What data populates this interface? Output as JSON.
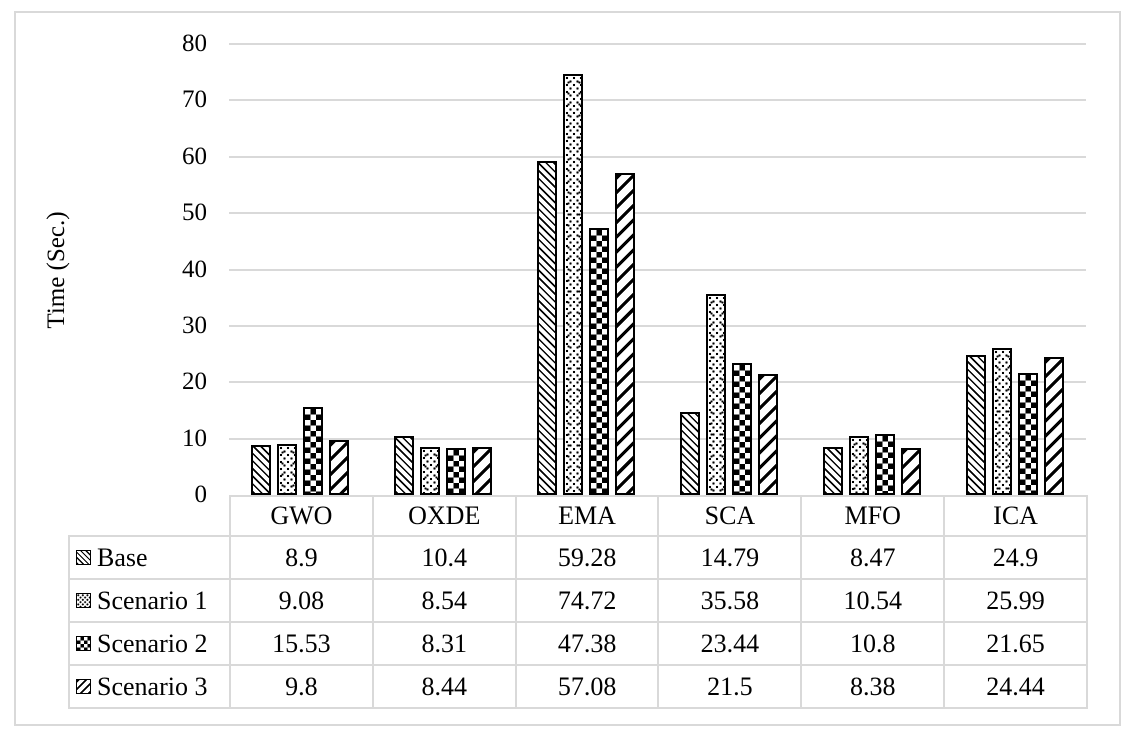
{
  "figure": {
    "background": "#ffffff",
    "frame_border_color": "#d9d9d9"
  },
  "chart_data": {
    "type": "bar",
    "title": "",
    "ylabel": "Time (Sec.)",
    "xlabel": "",
    "ylim": [
      0,
      80
    ],
    "ytick_step": 10,
    "ytick_labels": [
      "0",
      "10",
      "20",
      "30",
      "40",
      "50",
      "60",
      "70",
      "80"
    ],
    "grid": true,
    "legend_position": "data-table-left",
    "categories": [
      "GWO",
      "OXDE",
      "EMA",
      "SCA",
      "MFO",
      "ICA"
    ],
    "series": [
      {
        "name": "Base",
        "pattern": "diagonal-down-thin",
        "values": [
          8.9,
          10.4,
          59.28,
          14.79,
          8.47,
          24.9
        ]
      },
      {
        "name": "Scenario 1",
        "pattern": "dots",
        "values": [
          9.08,
          8.54,
          74.72,
          35.58,
          10.54,
          25.99
        ]
      },
      {
        "name": "Scenario 2",
        "pattern": "checkerboard",
        "values": [
          15.53,
          8.31,
          47.38,
          23.44,
          10.8,
          21.65
        ]
      },
      {
        "name": "Scenario 3",
        "pattern": "diagonal-up-wide",
        "values": [
          9.8,
          8.44,
          57.08,
          21.5,
          8.38,
          24.44
        ]
      }
    ]
  },
  "colors": {
    "bar_stroke": "#000000",
    "bar_fill_bg": "#ffffff",
    "gridline": "#d9d9d9",
    "table_border": "#d9d9d9",
    "text": "#000000"
  }
}
